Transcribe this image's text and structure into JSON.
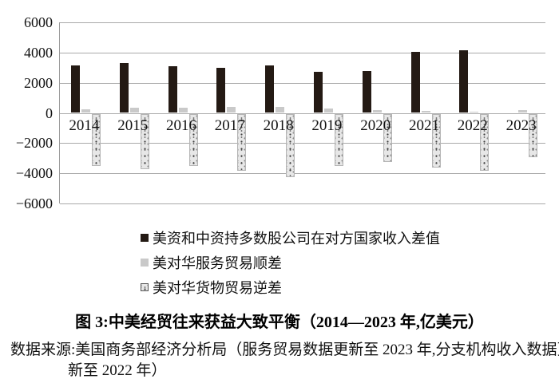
{
  "figure": {
    "caption": "图 3:中美经贸往来获益大致平衡（2014—2023 年,亿美元）",
    "source": {
      "line1": "数据来源:美国商务部经济分析局（服务贸易数据更新至 2023 年,分支机构收入数据更",
      "line2": "新至 2022 年）"
    }
  },
  "colors": {
    "bar_dark": "#241a14",
    "bar_gray": "#c9c9c9",
    "bar_speckle_bg": "#e7e7e7",
    "gridline": "#a9a9a9"
  },
  "chart_data": {
    "type": "bar",
    "title": "图 3:中美经贸往来获益大致平衡（2014—2023 年,亿美元）",
    "xlabel": "",
    "ylabel": "",
    "unit": "亿美元",
    "categories": [
      "2014",
      "2015",
      "2016",
      "2017",
      "2018",
      "2019",
      "2020",
      "2021",
      "2022",
      "2023"
    ],
    "series": [
      {
        "name": "美资和中资持多数股公司在对方国家收入差值",
        "style": "solid-dark",
        "color": "#241a14",
        "values": [
          3170,
          3300,
          3080,
          2990,
          3120,
          2730,
          2800,
          4040,
          4150,
          null
        ]
      },
      {
        "name": "美对华服务贸易顺差",
        "style": "solid-gray",
        "color": "#c9c9c9",
        "values": [
          230,
          320,
          370,
          380,
          380,
          300,
          160,
          110,
          70,
          200
        ]
      },
      {
        "name": "美对华货物贸易逆差",
        "style": "speckled",
        "color": "#e7e7e7",
        "values": [
          -3470,
          -3700,
          -3460,
          -3780,
          -4200,
          -3450,
          -3180,
          -3550,
          -3780,
          -2900
        ]
      }
    ],
    "yticks": [
      6000,
      4000,
      2000,
      0,
      -2000,
      -4000,
      -6000
    ],
    "ylim": [
      -6000,
      6000
    ],
    "grid": true,
    "legend_position": "bottom-left"
  }
}
